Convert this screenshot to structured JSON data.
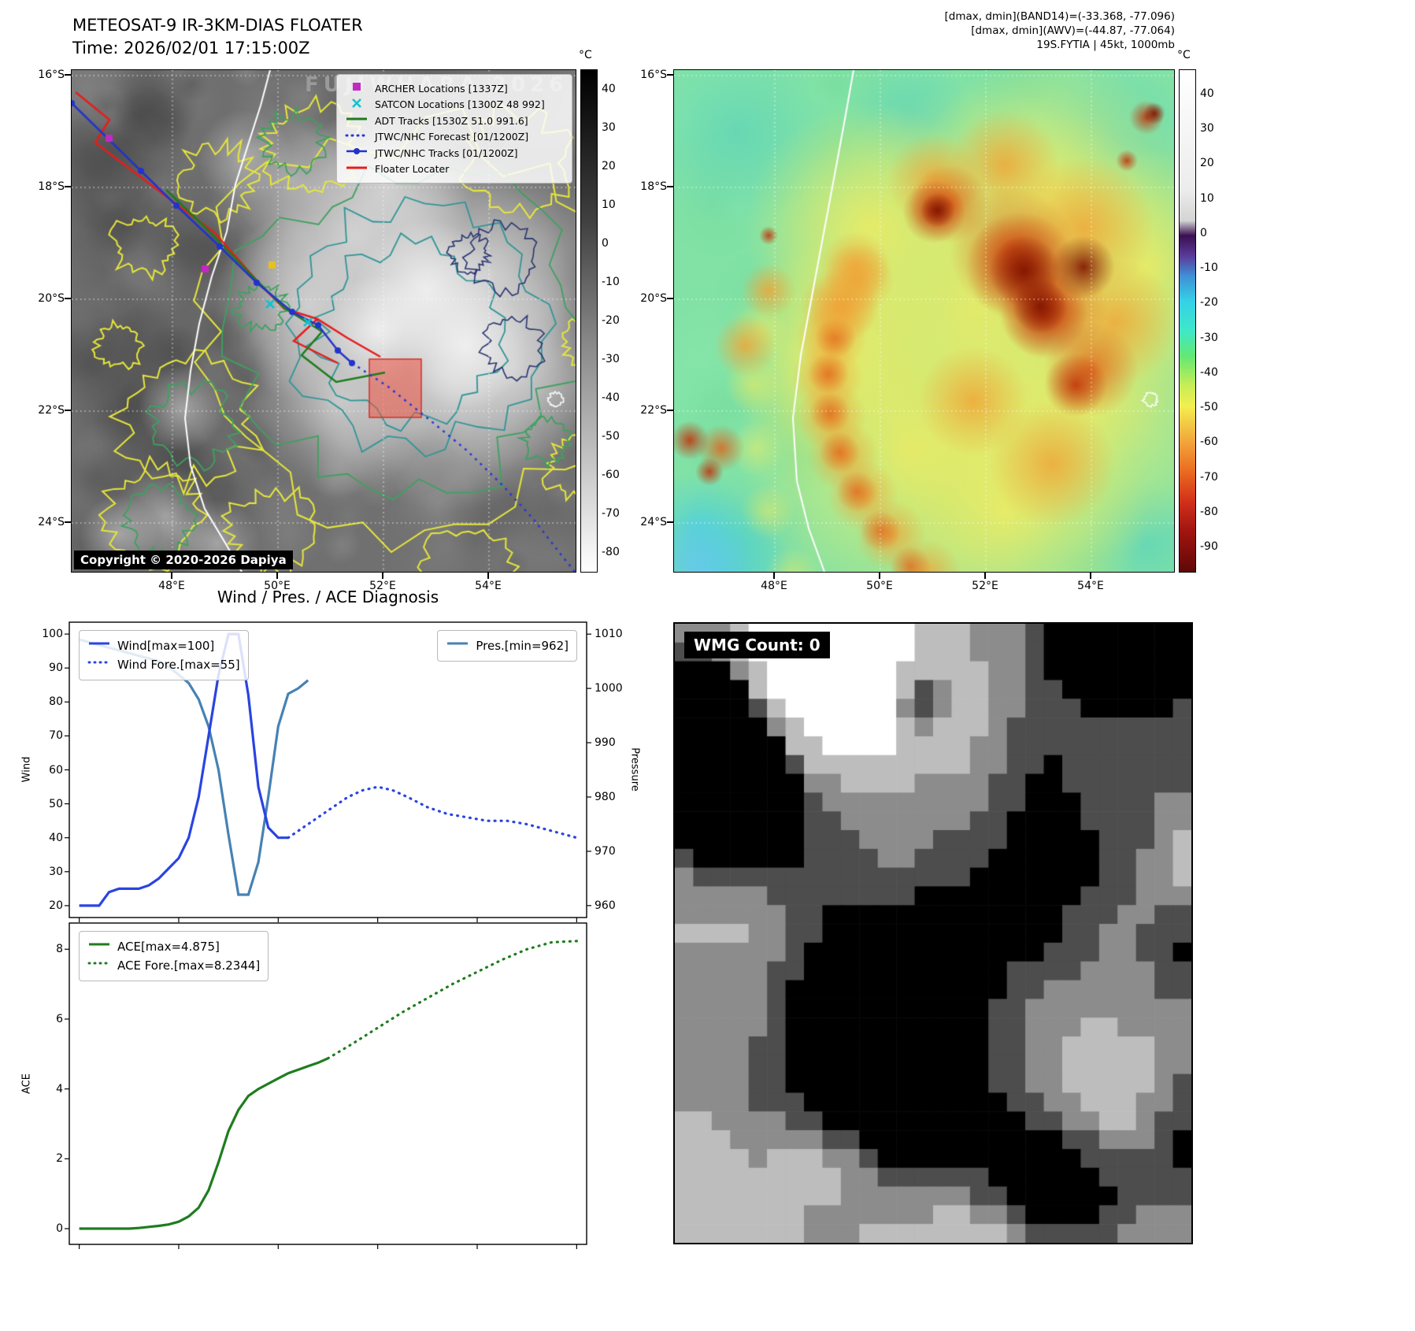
{
  "panel_ir_gray": {
    "title_line1": "METEOSAT-9 IR-3KM-DIAS FLOATER",
    "title_line2": "Time: 2026/02/01 17:15:00Z",
    "watermark": "FUJIWHARA 2026",
    "copyright": "Copyright © 2020-2026 Dapiya",
    "colorbar": {
      "unit": "°C",
      "ticks": [
        40,
        30,
        20,
        10,
        0,
        -10,
        -20,
        -30,
        -40,
        -50,
        -60,
        -70,
        -80
      ]
    },
    "lat_ticks": [
      "16°S",
      "18°S",
      "20°S",
      "22°S",
      "24°S"
    ],
    "lon_ticks": [
      "48°E",
      "50°E",
      "52°E",
      "54°E"
    ],
    "legend": [
      {
        "label": "ARCHER Locations [1337Z]",
        "marker": "square",
        "color": "#c428c4"
      },
      {
        "label": "SATCON Locations [1300Z 48 992]",
        "marker": "x",
        "color": "#10c2d0"
      },
      {
        "label": "ADT Tracks [1530Z 51.0 991.6]",
        "marker": "line",
        "color": "#1c7c1c"
      },
      {
        "label": "JTWC/NHC Forecast [01/1200Z]",
        "marker": "dotted",
        "color": "#2a35d8"
      },
      {
        "label": "JTWC/NHC Tracks [01/1200Z]",
        "marker": "line-dot",
        "color": "#2233cc"
      },
      {
        "label": "Floater Locater",
        "marker": "line",
        "color": "#e81c1c"
      }
    ]
  },
  "panel_ir_color": {
    "header_line1": "[dmax, dmin](BAND14)=(-33.368, -77.096)",
    "header_line2": "[dmax, dmin](AWV)=(-44.87, -77.064)",
    "header_line3": "19S.FYTIA | 45kt, 1000mb",
    "colorbar": {
      "unit": "°C",
      "ticks": [
        40,
        30,
        20,
        10,
        0,
        -10,
        -20,
        -30,
        -40,
        -50,
        -60,
        -70,
        -80,
        -90
      ]
    },
    "lat_ticks": [
      "16°S",
      "18°S",
      "20°S",
      "22°S",
      "24°S"
    ],
    "lon_ticks": [
      "48°E",
      "50°E",
      "52°E",
      "54°E"
    ]
  },
  "wmg": {
    "label": "WMG Count: 0"
  },
  "chart_data": [
    {
      "type": "line",
      "title": "Wind / Pres. / ACE Diagnosis",
      "subplot": "wind-pressure",
      "ylabel_left": "Wind",
      "ylabel_right": "Pressure",
      "ylim_left": [
        20,
        100
      ],
      "yticks_left": [
        20,
        30,
        40,
        50,
        60,
        70,
        80,
        90,
        100
      ],
      "ylim_right": [
        960,
        1010
      ],
      "yticks_right": [
        960,
        970,
        980,
        990,
        1000,
        1010
      ],
      "grid": false,
      "legend_position": "upper-left and upper-right",
      "series": [
        {
          "name": "Wind[max=100]",
          "style": "solid",
          "color": "#2a44e0",
          "axis": "left",
          "x": [
            0,
            2,
            4,
            6,
            8,
            10,
            12,
            14,
            16,
            18,
            20,
            22,
            24,
            26,
            28,
            30,
            32,
            34,
            36,
            38,
            40,
            42
          ],
          "y": [
            20,
            20,
            20,
            24,
            25,
            25,
            25,
            26,
            28,
            31,
            34,
            40,
            52,
            70,
            88,
            100,
            100,
            82,
            55,
            43,
            40,
            40
          ]
        },
        {
          "name": "Wind Fore.[max=55]",
          "style": "dotted",
          "color": "#2a44e0",
          "axis": "left",
          "x": [
            42,
            45,
            48,
            51,
            54,
            57,
            60,
            63,
            66,
            70,
            74,
            78,
            82,
            86,
            90,
            95,
            100
          ],
          "y": [
            40,
            43,
            46,
            49,
            52,
            54,
            55,
            54,
            52,
            49,
            47,
            46,
            45,
            45,
            44,
            42,
            40
          ]
        },
        {
          "name": "Pres.[min=962]",
          "style": "solid",
          "color": "#4682b4",
          "axis": "right",
          "x": [
            0,
            2,
            4,
            6,
            8,
            10,
            12,
            14,
            16,
            18,
            20,
            22,
            24,
            26,
            28,
            30,
            32,
            34,
            36,
            38,
            40,
            42,
            44,
            46
          ],
          "y": [
            1009,
            1008.5,
            1008,
            1007.5,
            1007,
            1006.5,
            1006,
            1005.5,
            1005,
            1004,
            1002.5,
            1001,
            998,
            993,
            985,
            973,
            962,
            962,
            968,
            980,
            993,
            999,
            1000,
            1001.5
          ]
        }
      ]
    },
    {
      "type": "line",
      "subplot": "ace",
      "ylabel_left": "ACE",
      "ylim_left": [
        0,
        8
      ],
      "yticks_left": [
        0,
        2,
        4,
        6,
        8
      ],
      "grid": false,
      "legend_position": "upper-left",
      "series": [
        {
          "name": "ACE[max=4.875]",
          "style": "solid",
          "color": "#1e7d1e",
          "axis": "left",
          "x": [
            0,
            2,
            4,
            6,
            8,
            10,
            12,
            14,
            16,
            18,
            20,
            22,
            24,
            26,
            28,
            30,
            32,
            34,
            36,
            38,
            40,
            42,
            44,
            46,
            48,
            50
          ],
          "y": [
            0,
            0,
            0,
            0,
            0,
            0,
            0.02,
            0.05,
            0.08,
            0.12,
            0.2,
            0.35,
            0.6,
            1.1,
            1.9,
            2.8,
            3.4,
            3.8,
            4.0,
            4.15,
            4.3,
            4.45,
            4.55,
            4.65,
            4.75,
            4.875
          ]
        },
        {
          "name": "ACE Fore.[max=8.2344]",
          "style": "dotted",
          "color": "#1e7d1e",
          "axis": "left",
          "x": [
            50,
            55,
            60,
            65,
            70,
            75,
            80,
            85,
            90,
            95,
            100
          ],
          "y": [
            4.875,
            5.3,
            5.75,
            6.2,
            6.6,
            7.0,
            7.35,
            7.7,
            8.0,
            8.2,
            8.2344
          ]
        }
      ]
    }
  ]
}
